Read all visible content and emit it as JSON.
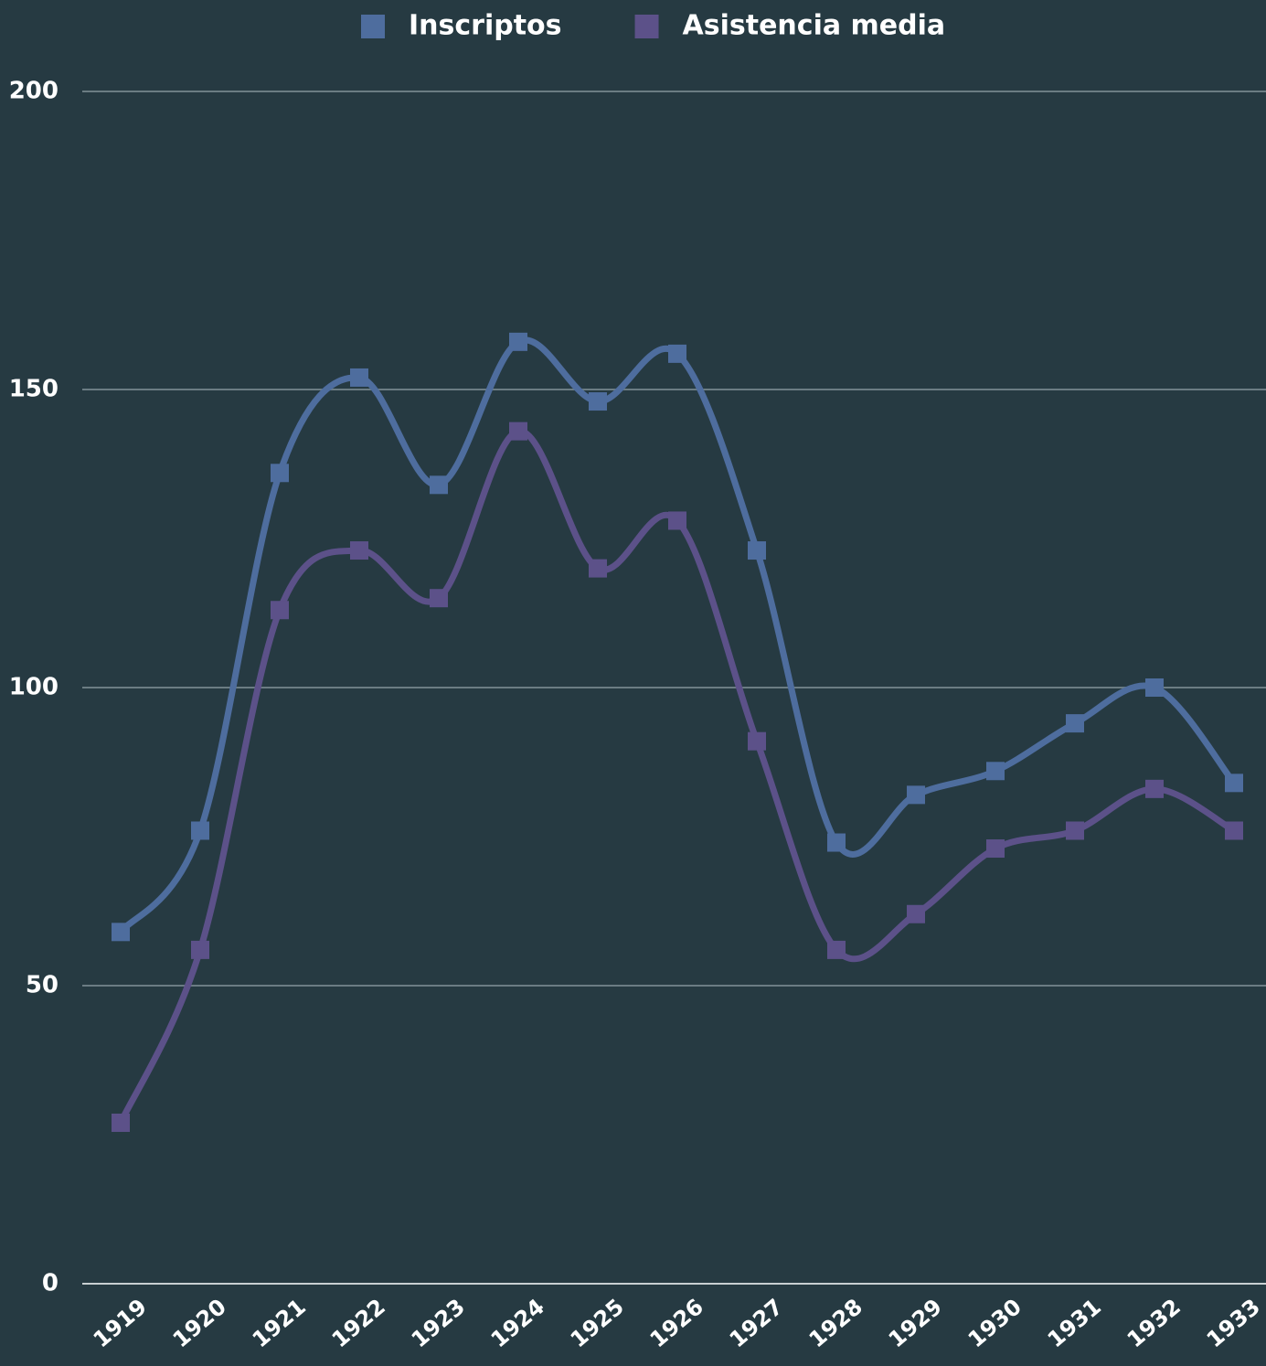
{
  "chart_data": {
    "type": "line",
    "categories": [
      "1919",
      "1920",
      "1921",
      "1922",
      "1923",
      "1924",
      "1925",
      "1926",
      "1927",
      "1928",
      "1929",
      "1930",
      "1931",
      "1932",
      "1933"
    ],
    "series": [
      {
        "name": "Inscriptos",
        "color": "#4e6d9e",
        "values": [
          59,
          76,
          136,
          152,
          134,
          158,
          148,
          156,
          123,
          74,
          82,
          86,
          94,
          100,
          84
        ]
      },
      {
        "name": "Asistencia media",
        "color": "#5c5189",
        "values": [
          27,
          56,
          113,
          123,
          115,
          143,
          120,
          128,
          91,
          56,
          62,
          73,
          76,
          83,
          76
        ]
      }
    ],
    "ylim": [
      0,
      200
    ],
    "yticks": [
      0,
      50,
      100,
      150,
      200
    ],
    "grid": true,
    "legend": "top",
    "smooth": true
  }
}
